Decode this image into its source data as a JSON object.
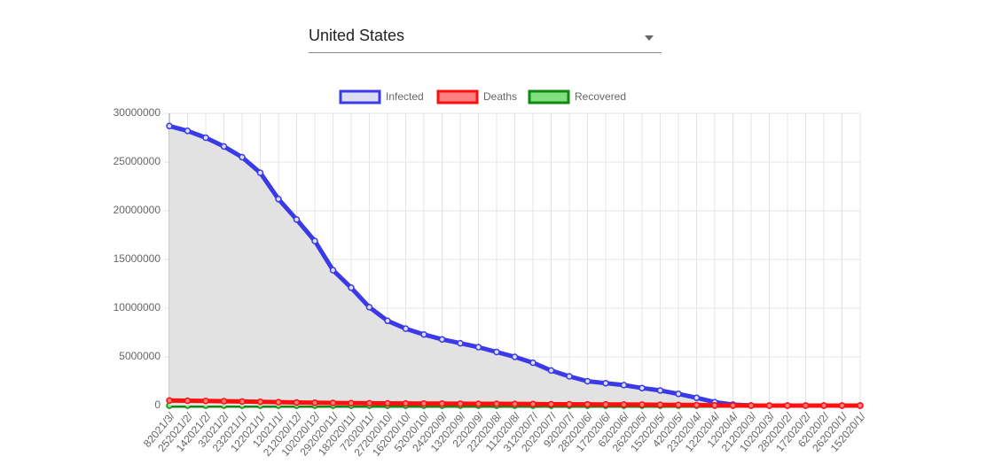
{
  "country_select": "United States",
  "chart_data": {
    "type": "line",
    "categories": [
      "82021/3/",
      "252021/2/",
      "142021/2/",
      "32021/2/",
      "232021/1/",
      "122021/1/",
      "12021/1/",
      "212020/12/",
      "102020/12/",
      "292020/11/",
      "182020/11/",
      "72020/11/",
      "272020/10/",
      "162020/10/",
      "52020/10/",
      "242020/9/",
      "132020/9/",
      "22020/9/",
      "222020/8/",
      "112020/8/",
      "312020/7/",
      "202020/7/",
      "92020/7/",
      "282020/6/",
      "172020/6/",
      "62020/6/",
      "262020/5/",
      "152020/5/",
      "42020/5/",
      "232020/4/",
      "122020/4/",
      "12020/4/",
      "212020/3/",
      "102020/3/",
      "282020/2/",
      "172020/2/",
      "62020/2/",
      "262020/1/",
      "152020/1/"
    ],
    "series": [
      {
        "name": "Infected",
        "color": "#3a3ae8",
        "fill": "#dcdcf2",
        "area": true,
        "values": [
          28700000,
          28200000,
          27500000,
          26600000,
          25500000,
          23900000,
          21200000,
          19100000,
          16900000,
          13900000,
          12100000,
          10100000,
          8700000,
          7900000,
          7300000,
          6800000,
          6400000,
          6000000,
          5500000,
          5000000,
          4400000,
          3600000,
          3000000,
          2500000,
          2300000,
          2100000,
          1800000,
          1550000,
          1200000,
          800000,
          350000,
          100000,
          10000,
          0,
          0,
          0,
          0,
          0,
          0
        ]
      },
      {
        "name": "Deaths",
        "color": "#ff1010",
        "fill": "#ff8080",
        "area": false,
        "values": [
          520000,
          500000,
          480000,
          450000,
          420000,
          390000,
          350000,
          320000,
          290000,
          270000,
          250000,
          240000,
          230000,
          220000,
          210000,
          200000,
          190000,
          185000,
          180000,
          170000,
          155000,
          140000,
          135000,
          130000,
          120000,
          110000,
          100000,
          85000,
          70000,
          50000,
          20000,
          5000,
          1000,
          0,
          0,
          0,
          0,
          0,
          0
        ]
      },
      {
        "name": "Recovered",
        "color": "#118811",
        "fill": "#80e080",
        "area": false,
        "values": [
          0,
          0,
          0,
          0,
          0,
          0,
          0,
          0,
          0,
          0,
          0,
          0,
          0,
          0,
          0,
          0,
          0,
          0,
          0,
          0,
          0,
          0,
          0,
          0,
          0,
          0,
          0,
          0,
          0,
          0,
          0,
          0,
          0,
          0,
          0,
          0,
          0,
          0,
          0
        ]
      }
    ],
    "ylim": [
      0,
      30000000
    ],
    "yticks": [
      0,
      5000000,
      10000000,
      15000000,
      20000000,
      25000000,
      30000000
    ],
    "grid": true,
    "legend": "top"
  }
}
